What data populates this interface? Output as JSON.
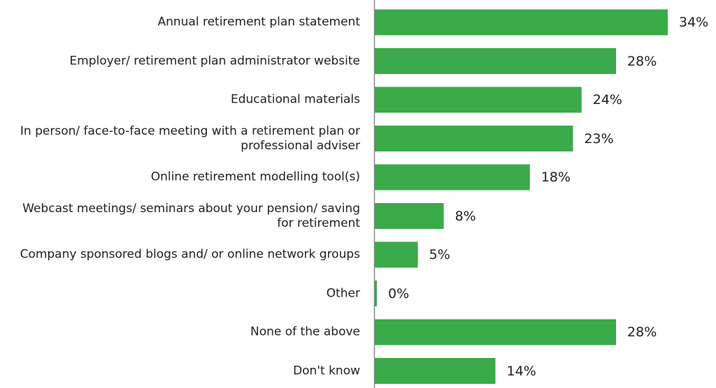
{
  "chart_data": {
    "type": "bar",
    "orientation": "horizontal",
    "color": "#3aaa4a",
    "categories": [
      "Annual retirement plan statement",
      "Employer/ retirement plan administrator website",
      "Educational materials",
      "In person/ face-to-face meeting with a retirement plan or professional adviser",
      "Online retirement modelling tool(s)",
      "Webcast meetings/ seminars about your pension/ saving for retirement",
      "Company sponsored blogs and/ or online network groups",
      "Other",
      "None of the above",
      "Don't know"
    ],
    "values": [
      34,
      28,
      24,
      23,
      18,
      8,
      5,
      0,
      28,
      14
    ],
    "value_labels": [
      "34%",
      "28%",
      "24%",
      "23%",
      "18%",
      "8%",
      "5%",
      "0%",
      "28%",
      "14%"
    ]
  }
}
